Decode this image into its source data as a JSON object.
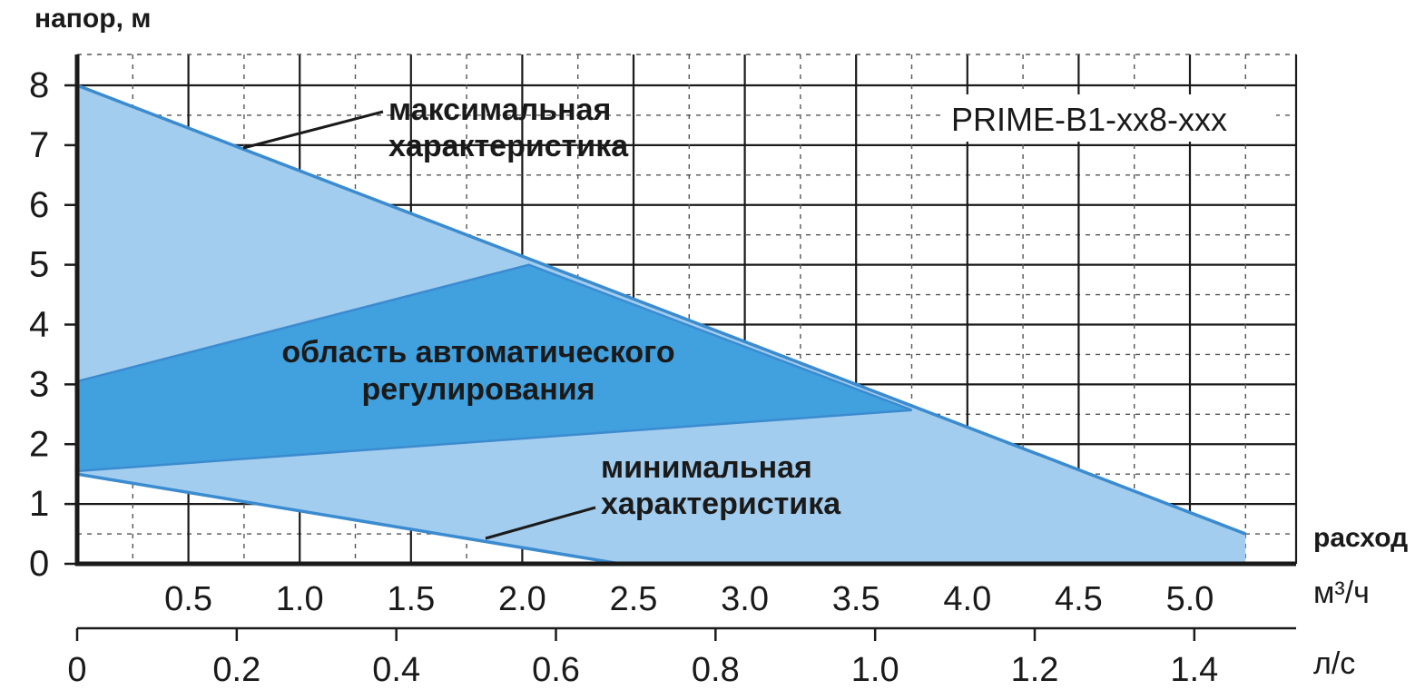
{
  "chart_data": {
    "type": "area",
    "title": "",
    "model_label": "PRIME-B1-xx8-xxx",
    "ylabel": "напор, м",
    "xlabel": "расход",
    "x_unit_primary": "м³/ч",
    "x_unit_secondary": "л/с",
    "ylim": [
      0,
      8
    ],
    "xlim": [
      0,
      5.5
    ],
    "x2lim": [
      0,
      1.528
    ],
    "y_ticks": [
      "0",
      "1",
      "2",
      "3",
      "4",
      "5",
      "6",
      "7",
      "8"
    ],
    "x_ticks": [
      {
        "v": 0.5,
        "label": "0.5"
      },
      {
        "v": 1.0,
        "label": "1.0"
      },
      {
        "v": 1.5,
        "label": "1.5"
      },
      {
        "v": 2.0,
        "label": "2.0"
      },
      {
        "v": 2.5,
        "label": "2.5"
      },
      {
        "v": 3.0,
        "label": "3.0"
      },
      {
        "v": 3.5,
        "label": "3.5"
      },
      {
        "v": 4.0,
        "label": "4.0"
      },
      {
        "v": 4.5,
        "label": "4.5"
      },
      {
        "v": 5.0,
        "label": "5.0"
      }
    ],
    "x2_ticks": [
      {
        "v": 0,
        "label": "0"
      },
      {
        "v": 0.2,
        "label": "0.2"
      },
      {
        "v": 0.4,
        "label": "0.4"
      },
      {
        "v": 0.6,
        "label": "0.6"
      },
      {
        "v": 0.8,
        "label": "0.8"
      },
      {
        "v": 1.0,
        "label": "1.0"
      },
      {
        "v": 1.2,
        "label": "1.2"
      },
      {
        "v": 1.4,
        "label": "1.4"
      }
    ],
    "grid": true,
    "series": [
      {
        "name": "максимальная характеристика",
        "x": [
          0,
          5.25
        ],
        "y": [
          8,
          0.5
        ]
      },
      {
        "name": "минимальная характеристика",
        "x": [
          0,
          2.44
        ],
        "y": [
          1.5,
          0
        ]
      }
    ],
    "auto_region": {
      "name": "область автоматического регулирования",
      "points": [
        [
          0,
          3.05
        ],
        [
          2.03,
          5.0
        ],
        [
          3.75,
          2.57
        ],
        [
          0,
          1.55
        ]
      ]
    },
    "annotations": {
      "max_line1": "максимальная",
      "max_line2": "характеристика",
      "auto_line1": "область автоматического",
      "auto_line2": "регулирования",
      "min_line1": "минимальная",
      "min_line2": "характеристика"
    },
    "colors": {
      "light_fill": "#a3cdee",
      "dark_fill": "#41a0de",
      "curve": "#3b8bd0",
      "grid": "#1a1a1a"
    }
  }
}
